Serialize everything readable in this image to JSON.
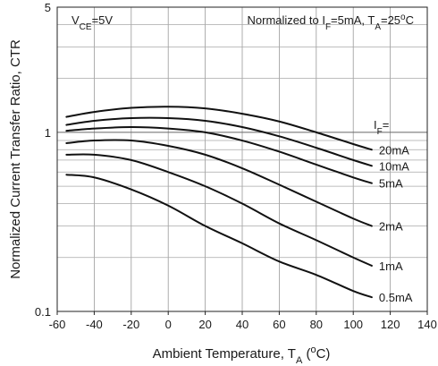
{
  "chart_data": {
    "type": "line",
    "xlabel": {
      "main": "Ambient Temperature, T",
      "sub": "A",
      "pre_sup": " (",
      "sup": "o",
      "post": "C)"
    },
    "ylabel": "Normalized Current Transfer Ratio, CTR",
    "xlim": [
      -60,
      140
    ],
    "ylim": [
      0.1,
      5
    ],
    "yscale": "log",
    "grid": true,
    "x_ticks": [
      -60,
      -40,
      -20,
      0,
      20,
      40,
      60,
      80,
      100,
      120,
      140
    ],
    "x_tick_labels": [
      "-60",
      "-40",
      "-20",
      "0",
      "20",
      "40",
      "60",
      "80",
      "100",
      "120",
      "140"
    ],
    "y_ticks": [
      0.1,
      1,
      5
    ],
    "y_tick_labels": [
      "0.1",
      "1",
      "5"
    ],
    "annotations": {
      "vce": {
        "main": "V",
        "sub": "CE",
        "post": "=5V"
      },
      "normalized": {
        "t1": "Normalized to I",
        "s1": "F",
        "t2": "=5mA, T",
        "s2": "A",
        "t3": "=25",
        "sup": "o",
        "t4": "C"
      },
      "if_label": {
        "main": "I",
        "sub": "F",
        "post": "="
      }
    },
    "series": [
      {
        "name": "20mA",
        "x": [
          -55,
          -40,
          -20,
          0,
          20,
          40,
          60,
          80,
          100,
          110
        ],
        "y": [
          1.22,
          1.3,
          1.37,
          1.39,
          1.36,
          1.27,
          1.15,
          1.0,
          0.86,
          0.8
        ]
      },
      {
        "name": "10mA",
        "x": [
          -55,
          -40,
          -20,
          0,
          20,
          40,
          60,
          80,
          100,
          110
        ],
        "y": [
          1.1,
          1.16,
          1.2,
          1.2,
          1.16,
          1.07,
          0.95,
          0.82,
          0.7,
          0.65
        ]
      },
      {
        "name": "5mA",
        "x": [
          -55,
          -40,
          -20,
          0,
          20,
          40,
          60,
          80,
          100,
          110
        ],
        "y": [
          1.02,
          1.05,
          1.07,
          1.05,
          1.0,
          0.9,
          0.78,
          0.66,
          0.56,
          0.52
        ]
      },
      {
        "name": "2mA",
        "x": [
          -55,
          -40,
          -20,
          0,
          20,
          40,
          60,
          80,
          100,
          110
        ],
        "y": [
          0.87,
          0.9,
          0.9,
          0.84,
          0.75,
          0.63,
          0.51,
          0.41,
          0.33,
          0.3
        ]
      },
      {
        "name": "1mA",
        "x": [
          -55,
          -40,
          -20,
          0,
          20,
          40,
          60,
          80,
          100,
          110
        ],
        "y": [
          0.75,
          0.75,
          0.7,
          0.6,
          0.5,
          0.4,
          0.31,
          0.25,
          0.2,
          0.18
        ]
      },
      {
        "name": "0.5mA",
        "x": [
          -55,
          -40,
          -20,
          0,
          20,
          40,
          60,
          80,
          100,
          110
        ],
        "y": [
          0.58,
          0.56,
          0.48,
          0.39,
          0.3,
          0.24,
          0.19,
          0.16,
          0.13,
          0.12
        ]
      }
    ]
  }
}
